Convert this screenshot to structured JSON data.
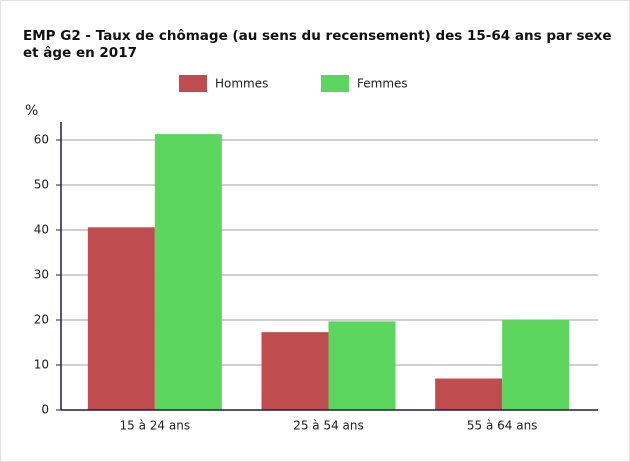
{
  "chart_data": {
    "type": "bar",
    "title": "EMP G2 - Taux de chômage (au sens du recensement) des 15-64 ans par sexe et âge en 2017",
    "y_label": "%",
    "categories": [
      "15 à 24 ans",
      "25 à 54 ans",
      "55 à 64 ans"
    ],
    "series": [
      {
        "name": "Hommes",
        "color": "#bf4d4f",
        "values": [
          40.6,
          17.3,
          7.0
        ]
      },
      {
        "name": "Femmes",
        "color": "#5cd65f",
        "values": [
          61.3,
          19.7,
          20.1
        ]
      }
    ],
    "ylim": [
      0,
      64
    ],
    "yticks": [
      0,
      10,
      20,
      30,
      40,
      50,
      60
    ],
    "grid": true,
    "legend": "top"
  }
}
